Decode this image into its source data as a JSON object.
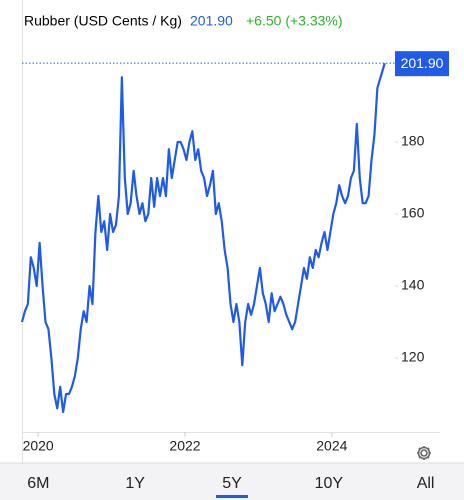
{
  "chart_data": {
    "type": "line",
    "title": "Rubber (USD Cents / Kg)",
    "price": "201.90",
    "change": "+6.50 (+3.33%)",
    "price_color": "#1a5fe0",
    "change_color": "#2ab32a",
    "x": [
      2019.78,
      2019.82,
      2019.86,
      2019.9,
      2019.94,
      2019.98,
      2020.02,
      2020.06,
      2020.1,
      2020.14,
      2020.18,
      2020.22,
      2020.26,
      2020.3,
      2020.34,
      2020.38,
      2020.42,
      2020.46,
      2020.5,
      2020.54,
      2020.58,
      2020.62,
      2020.66,
      2020.7,
      2020.74,
      2020.78,
      2020.82,
      2020.86,
      2020.9,
      2020.94,
      2020.98,
      2021.02,
      2021.06,
      2021.1,
      2021.14,
      2021.18,
      2021.22,
      2021.26,
      2021.3,
      2021.34,
      2021.38,
      2021.42,
      2021.46,
      2021.5,
      2021.54,
      2021.58,
      2021.62,
      2021.66,
      2021.7,
      2021.74,
      2021.78,
      2021.82,
      2021.86,
      2021.9,
      2021.94,
      2021.98,
      2022.02,
      2022.06,
      2022.1,
      2022.14,
      2022.18,
      2022.22,
      2022.26,
      2022.3,
      2022.34,
      2022.38,
      2022.42,
      2022.46,
      2022.5,
      2022.54,
      2022.58,
      2022.62,
      2022.66,
      2022.7,
      2022.74,
      2022.78,
      2022.82,
      2022.86,
      2022.9,
      2022.94,
      2022.98,
      2023.02,
      2023.06,
      2023.1,
      2023.14,
      2023.18,
      2023.22,
      2023.26,
      2023.3,
      2023.34,
      2023.38,
      2023.42,
      2023.46,
      2023.5,
      2023.54,
      2023.58,
      2023.62,
      2023.66,
      2023.7,
      2023.74,
      2023.78,
      2023.82,
      2023.86,
      2023.9,
      2023.94,
      2023.98,
      2024.02,
      2024.06,
      2024.1,
      2024.14,
      2024.18,
      2024.22,
      2024.26,
      2024.3,
      2024.34,
      2024.38,
      2024.42,
      2024.46,
      2024.5,
      2024.54,
      2024.58,
      2024.62,
      2024.72
    ],
    "series": [
      {
        "name": "Rubber",
        "color": "#1f5ae8",
        "values": [
          130,
          133,
          135,
          148,
          145,
          140,
          152,
          140,
          130,
          128,
          120,
          110,
          106,
          112,
          105,
          110,
          110,
          112,
          115,
          120,
          128,
          133,
          130,
          140,
          135,
          155,
          165,
          155,
          158,
          150,
          160,
          155,
          157,
          165,
          198,
          170,
          160,
          163,
          172,
          165,
          160,
          163,
          158,
          160,
          170,
          162,
          170,
          165,
          170,
          165,
          178,
          170,
          175,
          180,
          180,
          178,
          175,
          180,
          183,
          175,
          178,
          172,
          170,
          165,
          168,
          172,
          160,
          163,
          158,
          150,
          145,
          135,
          130,
          135,
          130,
          118,
          130,
          135,
          132,
          135,
          140,
          145,
          138,
          135,
          130,
          138,
          133,
          135,
          137,
          135,
          132,
          130,
          128,
          130,
          135,
          140,
          145,
          142,
          148,
          145,
          150,
          148,
          152,
          155,
          150,
          155,
          160,
          163,
          168,
          165,
          163,
          165,
          170,
          172,
          185,
          170,
          163,
          163,
          165,
          175,
          182,
          195,
          201.9
        ]
      }
    ],
    "xlim": [
      2019.78,
      2024.86
    ],
    "xticks": [
      2020,
      2022,
      2024
    ],
    "ylim": [
      100,
      212.5
    ],
    "yticks": [
      120,
      140,
      160,
      180
    ],
    "grid": false,
    "tabs": [
      "6M",
      "1Y",
      "5Y",
      "10Y",
      "All"
    ],
    "selected_tab": 2
  }
}
